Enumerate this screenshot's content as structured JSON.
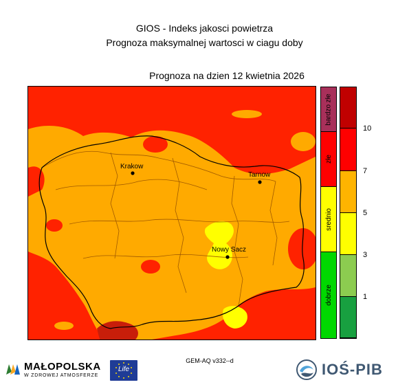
{
  "title_line1": "GIOS - Indeks jakosci powietrza",
  "title_line2": "Prognoza maksymalnej wartosci w ciagu doby",
  "forecast_date": "Prognoza na dzien  12 kwietnia 2026",
  "cities": [
    {
      "name": "Krakow"
    },
    {
      "name": "Tarnow"
    },
    {
      "name": "Nowy Sacz"
    }
  ],
  "legend_categories": [
    {
      "label": "bardzo złe",
      "color": "#a8305a"
    },
    {
      "label": "złe",
      "color": "#ff0000"
    },
    {
      "label": "srednio",
      "color": "#ffff00"
    },
    {
      "label": "dobrze",
      "color": "#00d800"
    }
  ],
  "legend_scale_colors": [
    "#c00000",
    "#ff0000",
    "#ffb400",
    "#ffff00",
    "#8ccc50",
    "#18a040"
  ],
  "legend_ticks": [
    "10",
    "7",
    "5",
    "3",
    "1"
  ],
  "model_label": "GEM-AQ v332--d",
  "logos": {
    "malopolska": "MAŁOPOLSKA",
    "malopolska_sub": "W ZDROWEJ ATMOSFERZE",
    "life": "Life",
    "ios": "IOŚ-PIB"
  },
  "colors": {
    "red": "#ff2200",
    "dark_red": "#c81e0a",
    "orange": "#ffaa00",
    "yellow": "#ffff00",
    "border": "#a05a00"
  }
}
